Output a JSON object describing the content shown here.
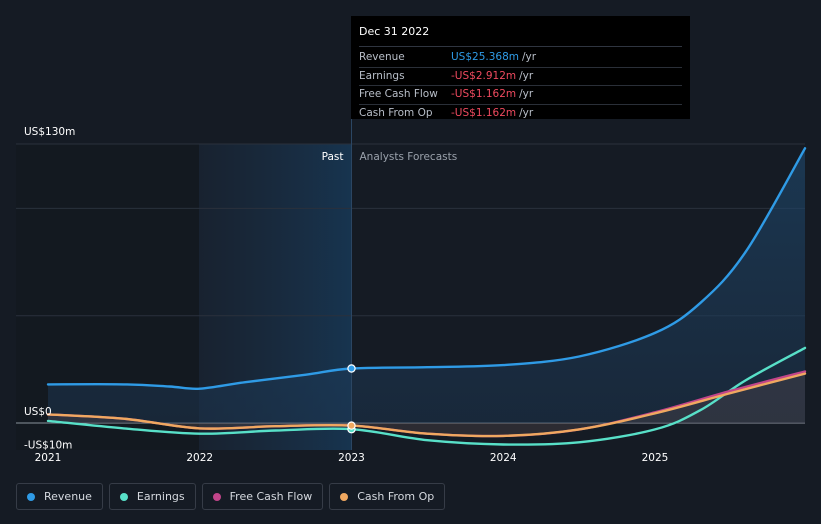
{
  "tooltip": {
    "title": "Dec 31 2022",
    "rows": [
      {
        "label": "Revenue",
        "value": "US$25.368m",
        "unit": "/yr",
        "color": "#2f9be6"
      },
      {
        "label": "Earnings",
        "value": "-US$2.912m",
        "unit": "/yr",
        "color": "#ef4a5f"
      },
      {
        "label": "Free Cash Flow",
        "value": "-US$1.162m",
        "unit": "/yr",
        "color": "#ef4a5f"
      },
      {
        "label": "Cash From Op",
        "value": "-US$1.162m",
        "unit": "/yr",
        "color": "#ef4a5f"
      }
    ]
  },
  "period": {
    "past": "Past",
    "forecast": "Analysts Forecasts"
  },
  "legend": [
    {
      "label": "Revenue",
      "color": "#2f9be6"
    },
    {
      "label": "Earnings",
      "color": "#58e0c8"
    },
    {
      "label": "Free Cash Flow",
      "color": "#c2458a"
    },
    {
      "label": "Cash From Op",
      "color": "#f0a860"
    }
  ],
  "chart_data": {
    "type": "line",
    "y_tick_labels": [
      "US$130m",
      "US$0",
      "-US$10m"
    ],
    "ylim": [
      -10,
      130
    ],
    "x_tick_labels": [
      "2021",
      "2022",
      "2023",
      "2024",
      "2025"
    ],
    "xlim": [
      2020.9,
      2026.0
    ],
    "divider_x": 2023.0,
    "series": [
      {
        "name": "Revenue",
        "color": "#2f9be6",
        "x": [
          2020.9,
          2021.5,
          2021.8,
          2022.0,
          2022.3,
          2022.7,
          2023.0,
          2023.5,
          2024.0,
          2024.5,
          2025.0,
          2025.3,
          2025.6,
          2026.0
        ],
        "y": [
          18,
          18,
          17,
          16,
          19,
          22.5,
          25.4,
          26,
          27,
          31,
          42,
          56,
          80,
          128
        ]
      },
      {
        "name": "Earnings",
        "color": "#58e0c8",
        "x": [
          2020.9,
          2021.5,
          2022.0,
          2022.5,
          2023.0,
          2023.5,
          2024.0,
          2024.5,
          2025.0,
          2025.3,
          2025.6,
          2026.0
        ],
        "y": [
          1,
          -2.5,
          -5,
          -3.5,
          -2.9,
          -8,
          -10,
          -9,
          -3,
          6,
          20,
          35
        ]
      },
      {
        "name": "Free Cash Flow",
        "color": "#c2458a",
        "x": [
          2020.9,
          2021.5,
          2022.0,
          2022.5,
          2023.0,
          2023.5,
          2024.0,
          2024.5,
          2025.0,
          2025.5,
          2026.0
        ],
        "y": [
          4,
          2,
          -2.5,
          -1.5,
          -1.2,
          -5,
          -6,
          -3,
          5,
          15,
          24
        ]
      },
      {
        "name": "Cash From Op",
        "color": "#f0a860",
        "x": [
          2020.9,
          2021.5,
          2022.0,
          2022.5,
          2023.0,
          2023.5,
          2024.0,
          2024.5,
          2025.0,
          2025.5,
          2026.0
        ],
        "y": [
          4,
          2,
          -2.5,
          -1.5,
          -1.2,
          -5,
          -6,
          -3,
          4.5,
          14,
          23
        ]
      }
    ]
  }
}
